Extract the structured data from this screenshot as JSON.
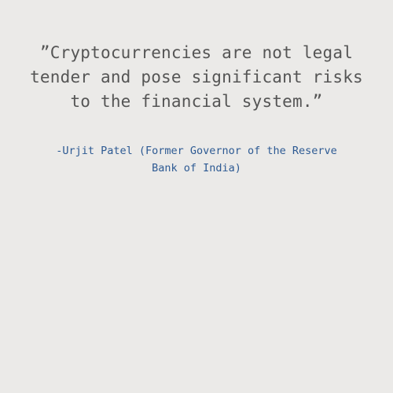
{
  "quote": {
    "text": "”Cryptocurrencies are not legal tender and pose significant risks to the financial system.”"
  },
  "attribution": {
    "text": "-Urjit Patel (Former Governor of the Reserve Bank of India)"
  },
  "colors": {
    "background": "#ebeae8",
    "quote_text": "#555555",
    "attribution_text": "#2d5a93"
  }
}
